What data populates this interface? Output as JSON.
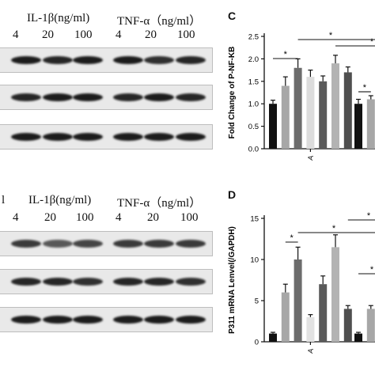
{
  "blots": [
    {
      "header": {
        "il1b": "IL-1β(ng/ml)",
        "tnfa": "TNF-α（ng/ml）",
        "doses": [
          "4",
          "20",
          "100",
          "4",
          "20",
          "100"
        ]
      },
      "rows": [
        [
          1.0,
          0.95,
          1.0,
          1.0,
          0.9,
          0.95
        ],
        [
          0.95,
          1.0,
          1.0,
          0.95,
          1.0,
          0.95
        ],
        [
          1.0,
          1.0,
          1.0,
          1.0,
          1.0,
          1.0
        ]
      ]
    },
    {
      "header": {
        "lead": "l",
        "il1b": "IL-1β(ng/ml)",
        "tnfa": "TNF-α（ng/ml）",
        "doses": [
          "4",
          "20",
          "100",
          "4",
          "20",
          "100"
        ]
      },
      "rows": [
        [
          0.85,
          0.7,
          0.8,
          0.85,
          0.85,
          0.85
        ],
        [
          0.95,
          0.95,
          0.9,
          0.95,
          0.95,
          0.9
        ],
        [
          1.0,
          1.0,
          1.0,
          1.0,
          1.0,
          1.0
        ]
      ]
    }
  ],
  "chart_data": [
    {
      "panel_letter": "C",
      "type": "bar",
      "ylabel": "Fold Change of P-NF-KB",
      "ylim": [
        0,
        2.5
      ],
      "yticks": [
        "0.0",
        "0.5",
        "1.0",
        "1.5",
        "2.0",
        "2.5"
      ],
      "x_tick_label": "A",
      "colors": [
        "#111111",
        "#a7a7a7",
        "#6c6c6c",
        "#dcdcdc",
        "#5a5a5a",
        "#b3b3b3",
        "#4f4f4f"
      ],
      "values": [
        1.0,
        1.4,
        1.8,
        1.6,
        1.5,
        1.9,
        1.7
      ],
      "errors": [
        0.08,
        0.2,
        0.2,
        0.15,
        0.12,
        0.18,
        0.12
      ],
      "second_group_values": [
        1.0,
        1.1
      ],
      "second_group_errors": [
        0.1,
        0.08
      ],
      "significance_mark": "*"
    },
    {
      "panel_letter": "D",
      "type": "bar",
      "ylabel": "P311 mRNA Lenvel(/GAPDH)",
      "ylim": [
        0,
        15
      ],
      "yticks": [
        "0",
        "5",
        "10",
        "15"
      ],
      "x_tick_label": "A",
      "colors": [
        "#111111",
        "#a7a7a7",
        "#6c6c6c",
        "#e2e2e2",
        "#5a5a5a",
        "#b3b3b3",
        "#4f4f4f"
      ],
      "values": [
        1.0,
        6.0,
        10.0,
        3.0,
        7.0,
        11.5,
        4.0
      ],
      "errors": [
        0.15,
        1.0,
        1.5,
        0.3,
        1.0,
        1.5,
        0.4
      ],
      "second_group_values": [
        1.0,
        4.0
      ],
      "second_group_errors": [
        0.15,
        0.4
      ],
      "significance_mark": "*"
    }
  ]
}
